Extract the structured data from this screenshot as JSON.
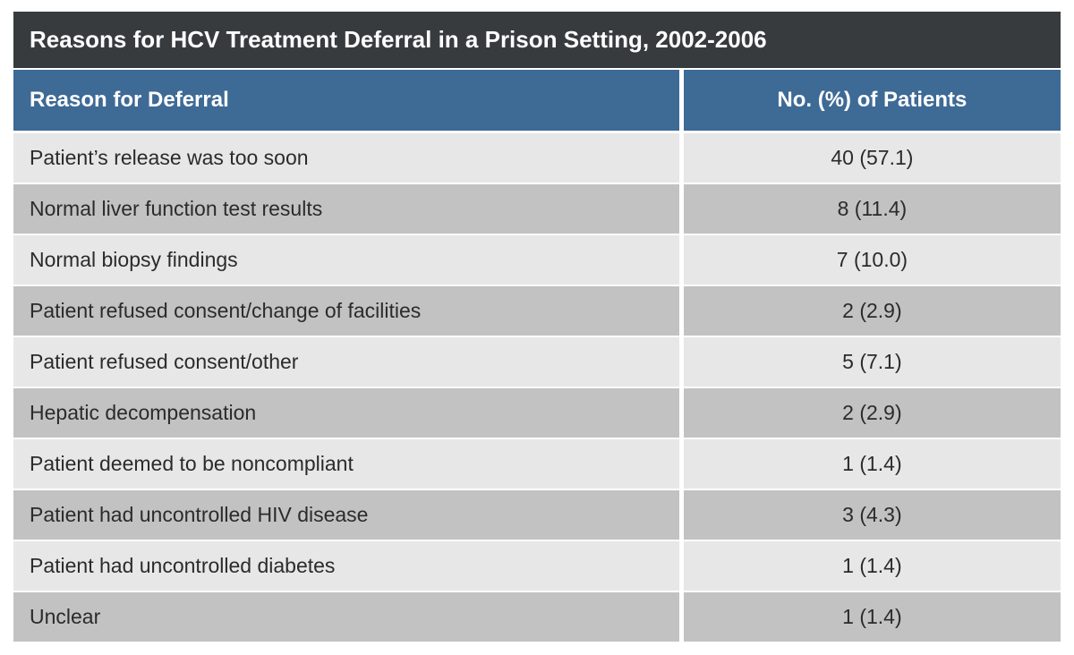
{
  "title": "Reasons for HCV Treatment Deferral in a Prison Setting, 2002-2006",
  "columns": {
    "reason": "Reason for Deferral",
    "count": "No. (%) of Patients"
  },
  "rows": [
    {
      "reason": "Patient’s release was too soon",
      "count": "40 (57.1)"
    },
    {
      "reason": "Normal liver function test results",
      "count": "8 (11.4)"
    },
    {
      "reason": "Normal biopsy findings",
      "count": "7 (10.0)"
    },
    {
      "reason": "Patient refused consent/change of facilities",
      "count": "2 (2.9)"
    },
    {
      "reason": "Patient refused consent/other",
      "count": "5 (7.1)"
    },
    {
      "reason": "Hepatic decompensation",
      "count": "2 (2.9)"
    },
    {
      "reason": "Patient deemed to be noncompliant",
      "count": "1 (1.4)"
    },
    {
      "reason": "Patient had uncontrolled HIV disease",
      "count": "3 (4.3)"
    },
    {
      "reason": "Patient had uncontrolled diabetes",
      "count": "1 (1.4)"
    },
    {
      "reason": "Unclear",
      "count": "1 (1.4)"
    }
  ],
  "style": {
    "title_bg": "#383b3e",
    "title_color": "#ffffff",
    "title_fontsize": 26,
    "header_bg": "#3e6a96",
    "header_color": "#ffffff",
    "header_fontsize": 24,
    "row_odd_bg": "#e7e7e7",
    "row_even_bg": "#c2c2c2",
    "cell_fontsize": 23,
    "cell_color": "#2b2b2b",
    "divider_color": "#ffffff",
    "col_widths": [
      "64%",
      "36%"
    ],
    "row_alignment": [
      "left",
      "center"
    ]
  }
}
